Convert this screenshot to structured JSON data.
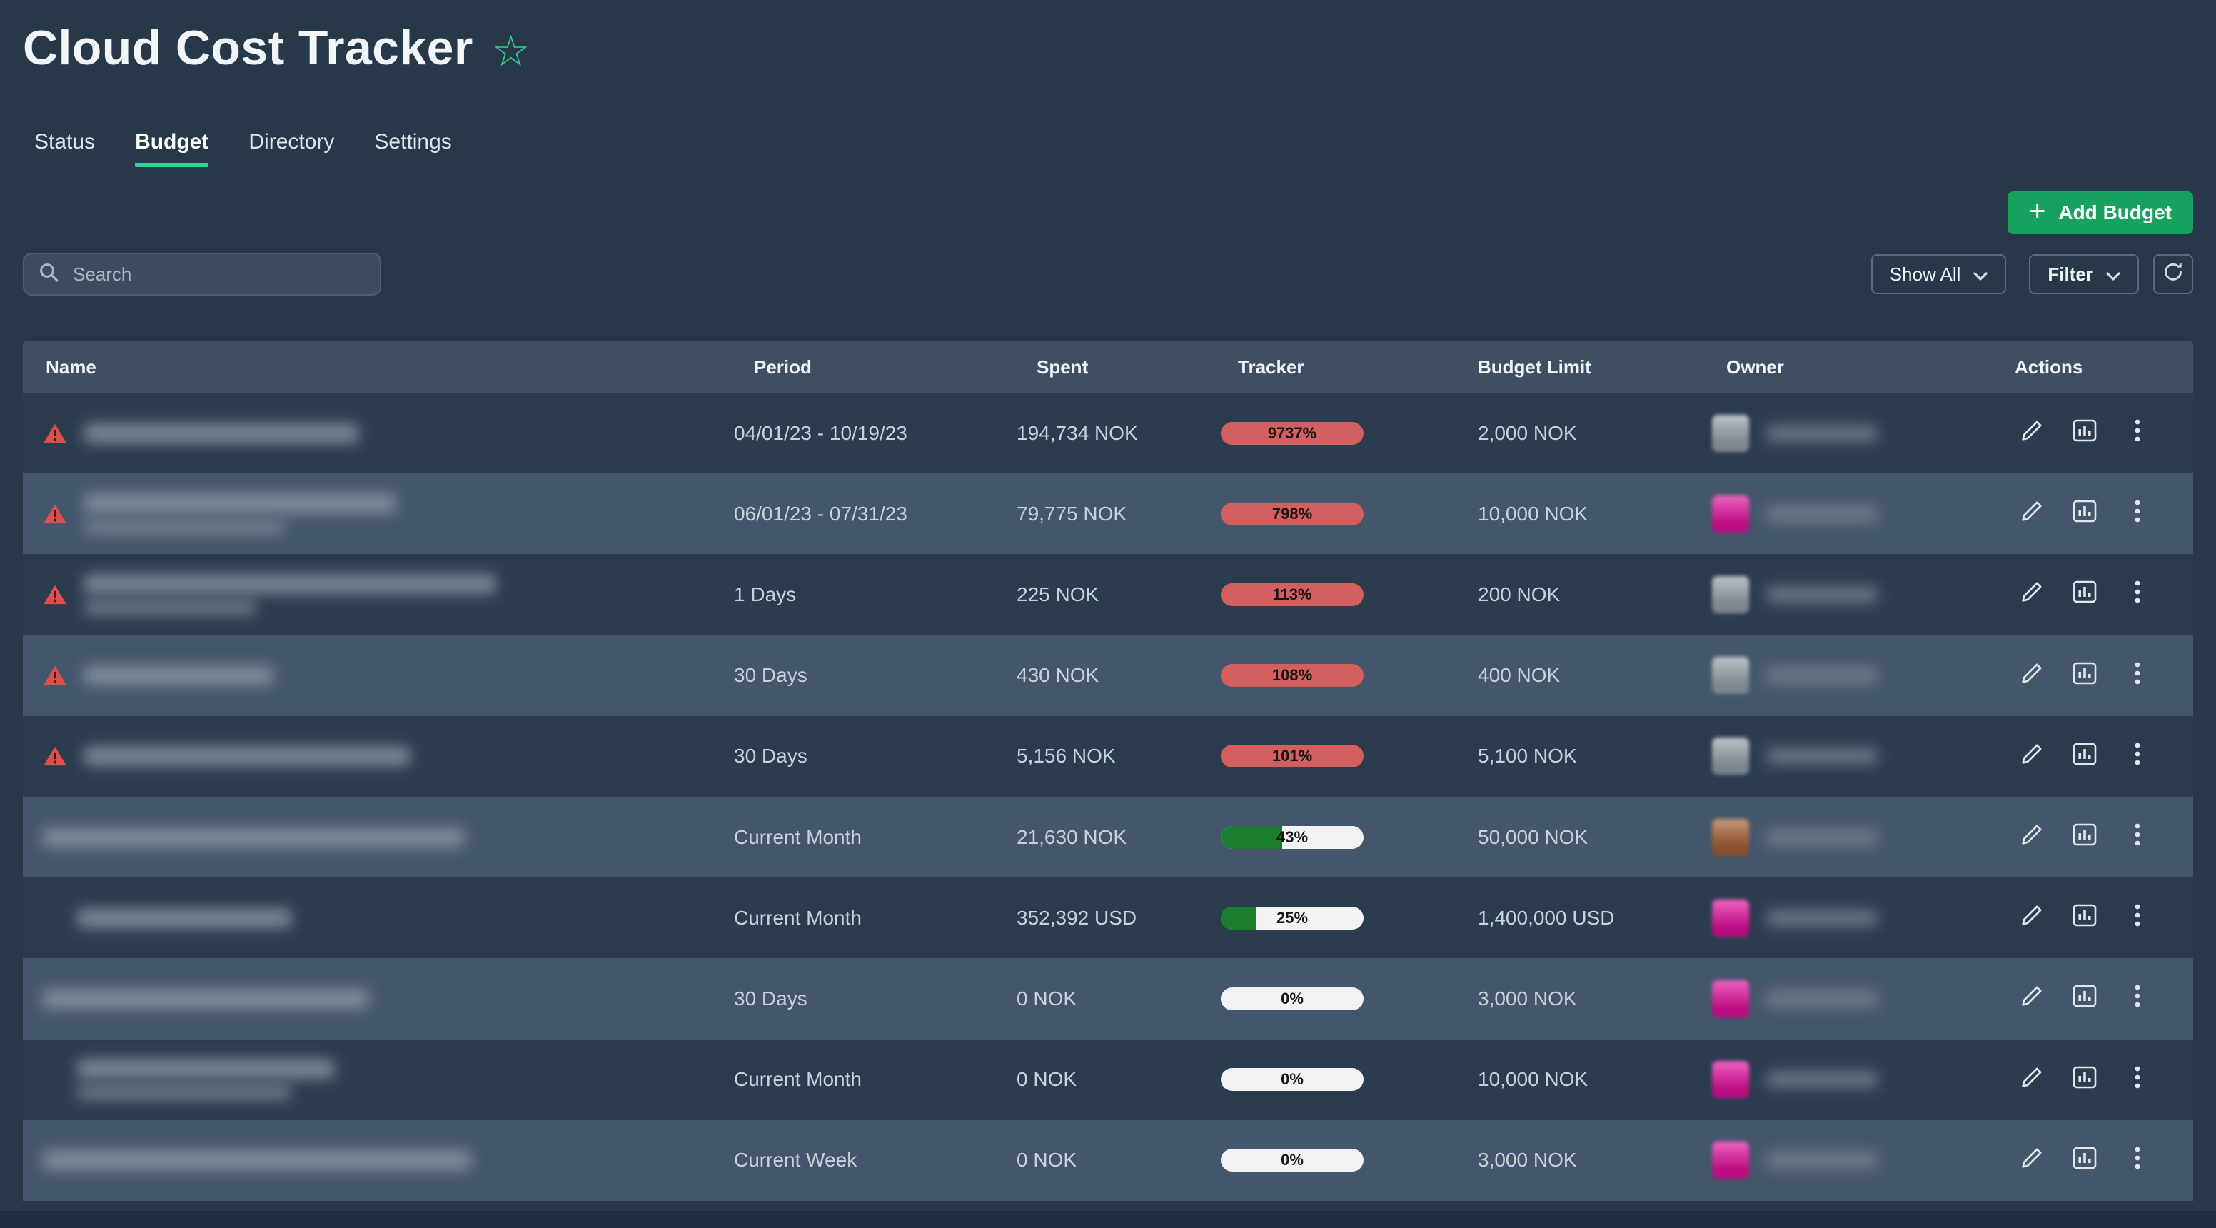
{
  "app": {
    "title": "Cloud Cost Tracker"
  },
  "tabs": [
    {
      "label": "Status",
      "active": false
    },
    {
      "label": "Budget",
      "active": true
    },
    {
      "label": "Directory",
      "active": false
    },
    {
      "label": "Settings",
      "active": false
    }
  ],
  "toolbar": {
    "add_budget_label": "Add Budget",
    "search_placeholder": "Search",
    "show_all_label": "Show All",
    "filter_label": "Filter"
  },
  "colors": {
    "page_bg": "#273848",
    "row_odd": "#2b3c4f",
    "row_even": "#44566b",
    "header_row": "#3e4f64",
    "accent_green": "#2fd393",
    "button_green": "#17a15f",
    "pill_over_red": "#d45f5f",
    "pill_progress_green": "#1b7e2f",
    "pill_bg": "#f2f3f4",
    "warning_red": "#dd4f4c",
    "owner_magenta": "#e60f9f",
    "owner_brown": "#a86034",
    "owner_gray": "#9aa3ad"
  },
  "table": {
    "columns": [
      "Name",
      "Period",
      "Spent",
      "Tracker",
      "Budget Limit",
      "Owner",
      "Actions"
    ],
    "rows": [
      {
        "warning": true,
        "name_redacted": true,
        "name_w": 192,
        "name_sub_w": 0,
        "indent": 0,
        "period": "04/01/23 - 10/19/23",
        "spent": "194,734 NOK",
        "tracker": {
          "label": "9737%",
          "percent": 9737,
          "over": true
        },
        "limit": "2,000 NOK",
        "owner": {
          "redacted": true,
          "avatar_color": "#9aa3ad"
        }
      },
      {
        "warning": true,
        "name_redacted": true,
        "name_w": 218,
        "name_sub_w": 140,
        "indent": 0,
        "period": "06/01/23 - 07/31/23",
        "spent": "79,775 NOK",
        "tracker": {
          "label": "798%",
          "percent": 798,
          "over": true
        },
        "limit": "10,000 NOK",
        "owner": {
          "redacted": true,
          "avatar_color": "#e60f9f"
        }
      },
      {
        "warning": true,
        "name_redacted": true,
        "name_w": 288,
        "name_sub_w": 120,
        "indent": 0,
        "period": "1 Days",
        "spent": "225 NOK",
        "tracker": {
          "label": "113%",
          "percent": 113,
          "over": true
        },
        "limit": "200 NOK",
        "owner": {
          "redacted": true,
          "avatar_color": "#9aa3ad"
        }
      },
      {
        "warning": true,
        "name_redacted": true,
        "name_w": 132,
        "name_sub_w": 0,
        "indent": 0,
        "period": "30 Days",
        "spent": "430 NOK",
        "tracker": {
          "label": "108%",
          "percent": 108,
          "over": true
        },
        "limit": "400 NOK",
        "owner": {
          "redacted": true,
          "avatar_color": "#9aa3ad"
        }
      },
      {
        "warning": true,
        "name_redacted": true,
        "name_w": 228,
        "name_sub_w": 0,
        "indent": 0,
        "period": "30 Days",
        "spent": "5,156 NOK",
        "tracker": {
          "label": "101%",
          "percent": 101,
          "over": true
        },
        "limit": "5,100 NOK",
        "owner": {
          "redacted": true,
          "avatar_color": "#9aa3ad"
        }
      },
      {
        "warning": false,
        "name_redacted": true,
        "name_w": 295,
        "name_sub_w": 0,
        "indent": 0,
        "period": "Current Month",
        "spent": "21,630 NOK",
        "tracker": {
          "label": "43%",
          "percent": 43,
          "over": false
        },
        "limit": "50,000 NOK",
        "owner": {
          "redacted": true,
          "avatar_color": "#a86034"
        }
      },
      {
        "warning": false,
        "name_redacted": true,
        "name_w": 150,
        "name_sub_w": 0,
        "indent": 24,
        "period": "Current Month",
        "spent": "352,392 USD",
        "tracker": {
          "label": "25%",
          "percent": 25,
          "over": false
        },
        "limit": "1,400,000 USD",
        "owner": {
          "redacted": true,
          "avatar_color": "#e60f9f"
        }
      },
      {
        "warning": false,
        "name_redacted": true,
        "name_w": 228,
        "name_sub_w": 0,
        "indent": 0,
        "period": "30 Days",
        "spent": "0 NOK",
        "tracker": {
          "label": "0%",
          "percent": 0,
          "over": false
        },
        "limit": "3,000 NOK",
        "owner": {
          "redacted": true,
          "avatar_color": "#e60f9f"
        }
      },
      {
        "warning": false,
        "name_redacted": true,
        "name_w": 180,
        "name_sub_w": 150,
        "indent": 24,
        "period": "Current Month",
        "spent": "0 NOK",
        "tracker": {
          "label": "0%",
          "percent": 0,
          "over": false
        },
        "limit": "10,000 NOK",
        "owner": {
          "redacted": true,
          "avatar_color": "#e60f9f"
        }
      },
      {
        "warning": false,
        "name_redacted": true,
        "name_w": 300,
        "name_sub_w": 0,
        "indent": 0,
        "period": "Current Week",
        "spent": "0 NOK",
        "tracker": {
          "label": "0%",
          "percent": 0,
          "over": false
        },
        "limit": "3,000 NOK",
        "owner": {
          "redacted": true,
          "avatar_color": "#e60f9f"
        }
      }
    ]
  }
}
